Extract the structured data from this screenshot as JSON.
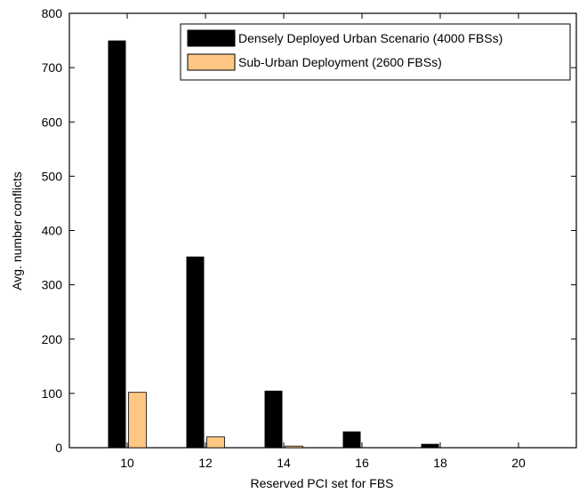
{
  "chart_data": {
    "type": "bar",
    "xlabel": "Reserved PCI set for FBS",
    "ylabel": "Avg. number conflicts",
    "categories": [
      "10",
      "12",
      "14",
      "16",
      "18",
      "20"
    ],
    "ylim": [
      0,
      800
    ],
    "yticks": [
      0,
      100,
      200,
      300,
      400,
      500,
      600,
      700,
      800
    ],
    "grid": false,
    "legend_position": "top-right",
    "series": [
      {
        "name": "Densely Deployed Urban Scenario (4000 FBSs)",
        "values": [
          750,
          352,
          105,
          30,
          7,
          0
        ],
        "color": "#000000"
      },
      {
        "name": "Sub-Urban Deployment (2600 FBSs)",
        "values": [
          102,
          20,
          3,
          0,
          0,
          0
        ],
        "color": "#ffc784"
      }
    ]
  }
}
